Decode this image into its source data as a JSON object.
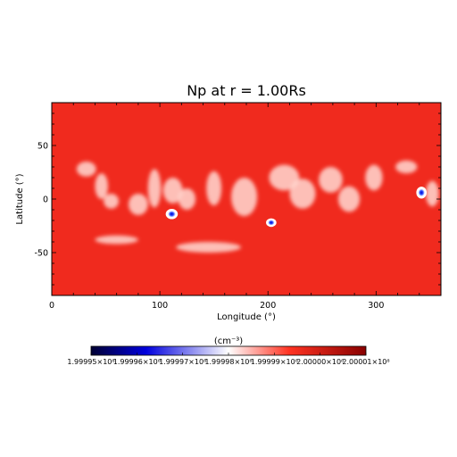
{
  "chart_data": {
    "type": "heatmap",
    "title": "Np at r = 1.00Rs",
    "xlabel": "Longitude (°)",
    "ylabel": "Latitude (°)",
    "xlim": [
      0,
      360
    ],
    "ylim": [
      -90,
      90
    ],
    "x_ticks": [
      0,
      100,
      200,
      300
    ],
    "y_ticks": [
      -50,
      0,
      50
    ],
    "x_tick_labels": [
      "0",
      "100",
      "200",
      "300"
    ],
    "y_tick_labels": [
      "-50",
      "0",
      "50"
    ],
    "colorbar": {
      "unit": "(cm⁻³)",
      "tick_labels": [
        "1.99995×10⁸",
        "1.99996×10⁸",
        "1.99997×10⁸",
        "1.99998×10⁸",
        "1.99999×10⁸",
        "2.00000×10⁸",
        "2.00001×10⁸"
      ],
      "colors": [
        "#000033",
        "#0000dd",
        "#ffffff",
        "#ff3322",
        "#880000"
      ]
    },
    "field": {
      "background": "#f02a1e",
      "light_patches": [
        {
          "lon": 32,
          "lat": 28,
          "rx": 9,
          "ry": 7
        },
        {
          "lon": 46,
          "lat": 12,
          "rx": 6,
          "ry": 12
        },
        {
          "lon": 55,
          "lat": -2,
          "rx": 7,
          "ry": 7
        },
        {
          "lon": 80,
          "lat": -5,
          "rx": 9,
          "ry": 10
        },
        {
          "lon": 95,
          "lat": 10,
          "rx": 6,
          "ry": 18
        },
        {
          "lon": 112,
          "lat": 8,
          "rx": 9,
          "ry": 12
        },
        {
          "lon": 125,
          "lat": 0,
          "rx": 8,
          "ry": 10
        },
        {
          "lon": 150,
          "lat": 10,
          "rx": 7,
          "ry": 16
        },
        {
          "lon": 178,
          "lat": 2,
          "rx": 12,
          "ry": 18
        },
        {
          "lon": 215,
          "lat": 20,
          "rx": 14,
          "ry": 12
        },
        {
          "lon": 232,
          "lat": 5,
          "rx": 12,
          "ry": 14
        },
        {
          "lon": 258,
          "lat": 18,
          "rx": 11,
          "ry": 12
        },
        {
          "lon": 275,
          "lat": 0,
          "rx": 10,
          "ry": 12
        },
        {
          "lon": 298,
          "lat": 20,
          "rx": 8,
          "ry": 12
        },
        {
          "lon": 328,
          "lat": 30,
          "rx": 10,
          "ry": 6
        },
        {
          "lon": 352,
          "lat": 5,
          "rx": 6,
          "ry": 12
        },
        {
          "lon": 145,
          "lat": -45,
          "rx": 30,
          "ry": 5
        },
        {
          "lon": 60,
          "lat": -38,
          "rx": 20,
          "ry": 4
        }
      ],
      "blue_spots": [
        {
          "lon": 111,
          "lat": -14,
          "rx": 3.5,
          "ry": 3
        },
        {
          "lon": 203,
          "lat": -22,
          "rx": 3,
          "ry": 2.5
        },
        {
          "lon": 342,
          "lat": 6,
          "rx": 3,
          "ry": 3.5
        }
      ]
    }
  }
}
